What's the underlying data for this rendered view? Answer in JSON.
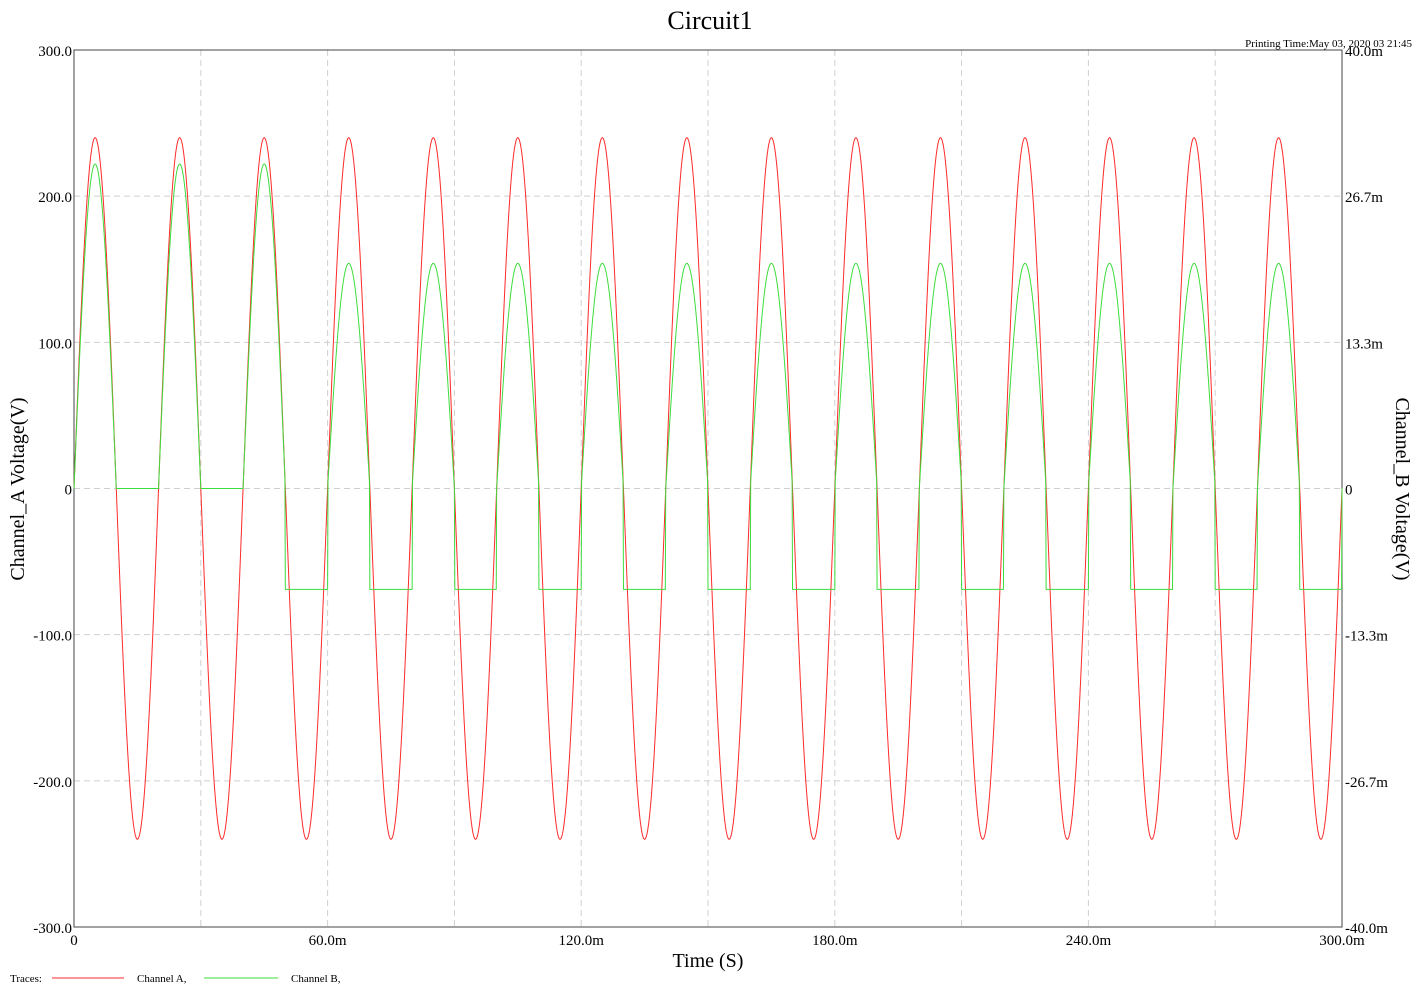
{
  "chart_data": {
    "type": "line",
    "title": "Circuit1",
    "printing_time": "Printing Time:May 03, 2020 03 21:45",
    "xlabel": "Time (S)",
    "ylabel_left": "Channel_A Voltage(V)",
    "ylabel_right": "Channel_B Voltage(V)",
    "xlim": [
      0,
      0.3
    ],
    "ylim_left": [
      -300,
      300
    ],
    "ylim_right": [
      -0.04,
      0.04
    ],
    "x_ticks": [
      0,
      0.06,
      0.12,
      0.18,
      0.24,
      0.3
    ],
    "x_tick_labels": [
      "0",
      "60.0m",
      "120.0m",
      "180.0m",
      "240.0m",
      "300.0m"
    ],
    "y_ticks_left": [
      300,
      200,
      100,
      0,
      -100,
      -200,
      -300
    ],
    "y_tick_labels_left": [
      "300.0",
      "200.0",
      "100.0",
      "0",
      "-100.0",
      "-200.0",
      "-300.0"
    ],
    "y_ticks_right": [
      0.04,
      0.0267,
      0.0133,
      0,
      -0.0133,
      -0.0267,
      -0.04
    ],
    "y_tick_labels_right": [
      "40.0m",
      "26.7m",
      "13.3m",
      "0",
      "-13.3m",
      "-26.7m",
      "-40.0m"
    ],
    "grid": true,
    "grid_x": [
      0.03,
      0.06,
      0.09,
      0.12,
      0.15,
      0.18,
      0.21,
      0.24,
      0.27
    ],
    "grid_y": [
      200,
      100,
      0,
      -100,
      -200
    ],
    "legend": {
      "label": "Traces:",
      "placement": "bottom-left",
      "entries": [
        "Channel A,",
        "Channel B,"
      ]
    },
    "series": [
      {
        "name": "Channel A",
        "color": "#ff2a2a",
        "axis": "left",
        "description": "sine wave, amplitude 240 V, period 20 ms",
        "x": [
          0,
          0.005,
          0.01,
          0.015,
          0.02,
          0.025,
          0.03,
          0.035,
          0.04,
          0.045,
          0.05,
          0.055,
          0.06,
          0.065,
          0.07,
          0.075,
          0.08,
          0.085,
          0.09,
          0.095,
          0.1,
          0.105,
          0.11,
          0.115,
          0.12,
          0.125,
          0.13,
          0.135,
          0.14,
          0.145,
          0.15,
          0.155,
          0.16,
          0.165,
          0.17,
          0.175,
          0.18,
          0.185,
          0.19,
          0.195,
          0.2,
          0.205,
          0.21,
          0.215,
          0.22,
          0.225,
          0.23,
          0.235,
          0.24,
          0.245,
          0.25,
          0.255,
          0.26,
          0.265,
          0.27,
          0.275,
          0.28,
          0.285,
          0.29,
          0.295,
          0.3
        ],
        "y": [
          0,
          240,
          0,
          -240,
          0,
          240,
          0,
          -240,
          0,
          240,
          0,
          -240,
          0,
          240,
          0,
          -240,
          0,
          240,
          0,
          -240,
          0,
          240,
          0,
          -240,
          0,
          240,
          0,
          -240,
          0,
          240,
          0,
          -240,
          0,
          240,
          0,
          -240,
          0,
          240,
          0,
          -240,
          0,
          240,
          0,
          -240,
          0,
          240,
          0,
          -240,
          0,
          240,
          0,
          -240,
          0,
          240,
          0,
          -240,
          0,
          240,
          0,
          -240,
          0
        ]
      },
      {
        "name": "Channel B",
        "color": "#3ddc3d",
        "axis": "left",
        "description": "clipped half-wave: peaks ~222 for first 3 cycles (floor 0), then peaks ~154 with floor ~-69"
      }
    ]
  }
}
